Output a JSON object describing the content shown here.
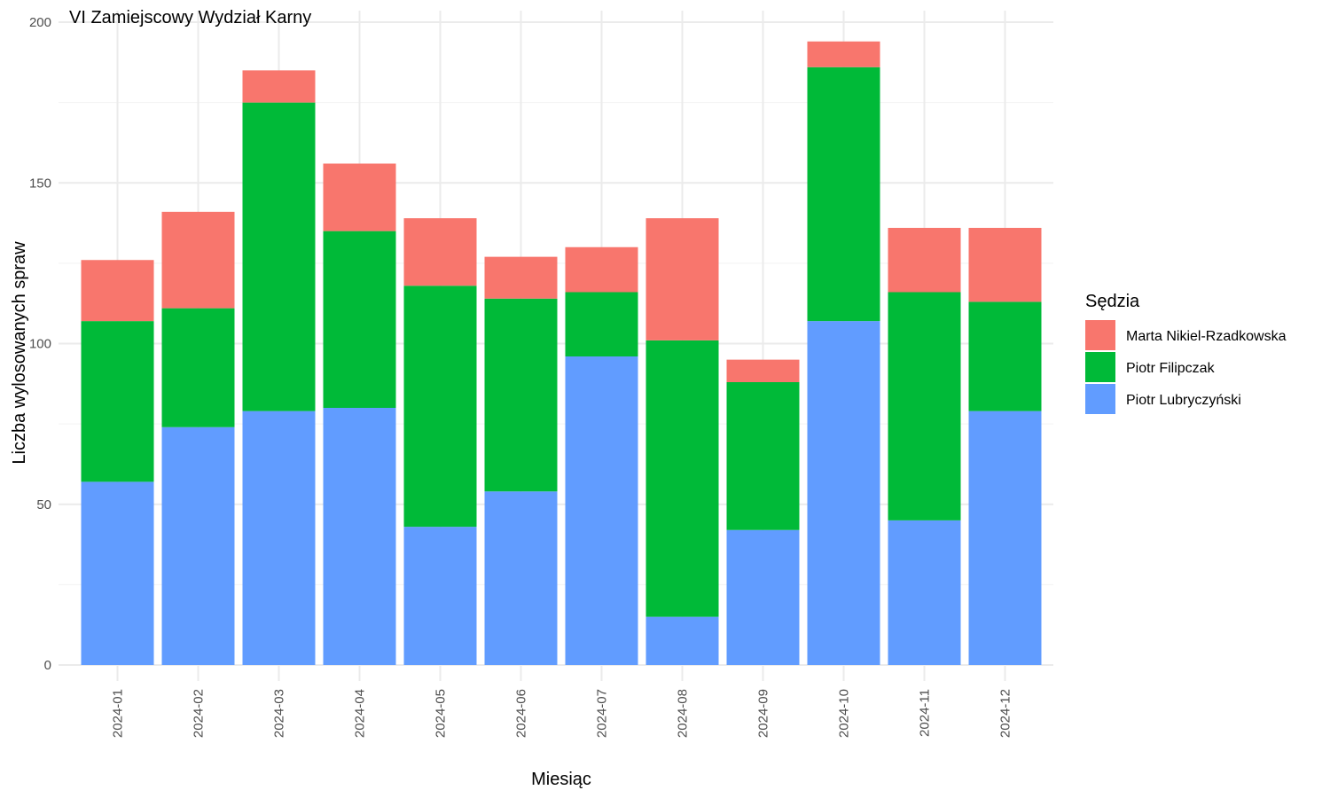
{
  "chart_data": {
    "type": "bar",
    "stacked": true,
    "title": "VI Zamiejscowy Wydział Karny",
    "xlabel": "Miesiąc",
    "ylabel": "Liczba wylosowanych spraw",
    "ylim": [
      0,
      200
    ],
    "yticks": [
      0,
      50,
      100,
      150,
      200
    ],
    "grid": true,
    "legend_position": "right",
    "legend_title": "Sędzia",
    "categories": [
      "2024-01",
      "2024-02",
      "2024-03",
      "2024-04",
      "2024-05",
      "2024-06",
      "2024-07",
      "2024-08",
      "2024-09",
      "2024-10",
      "2024-11",
      "2024-12"
    ],
    "series": [
      {
        "name": "Piotr Lubryczyński",
        "color": "#619CFF",
        "values": [
          57,
          74,
          79,
          80,
          43,
          54,
          96,
          15,
          42,
          107,
          45,
          79
        ]
      },
      {
        "name": "Piotr Filipczak",
        "color": "#00BA38",
        "values": [
          50,
          37,
          96,
          55,
          75,
          60,
          20,
          86,
          46,
          79,
          71,
          34
        ]
      },
      {
        "name": "Marta Nikiel-Rzadkowska",
        "color": "#F8766D",
        "values": [
          19,
          30,
          10,
          21,
          21,
          13,
          14,
          38,
          7,
          8,
          20,
          23
        ]
      }
    ],
    "legend_order": [
      "Marta Nikiel-Rzadkowska",
      "Piotr Filipczak",
      "Piotr Lubryczyński"
    ]
  }
}
